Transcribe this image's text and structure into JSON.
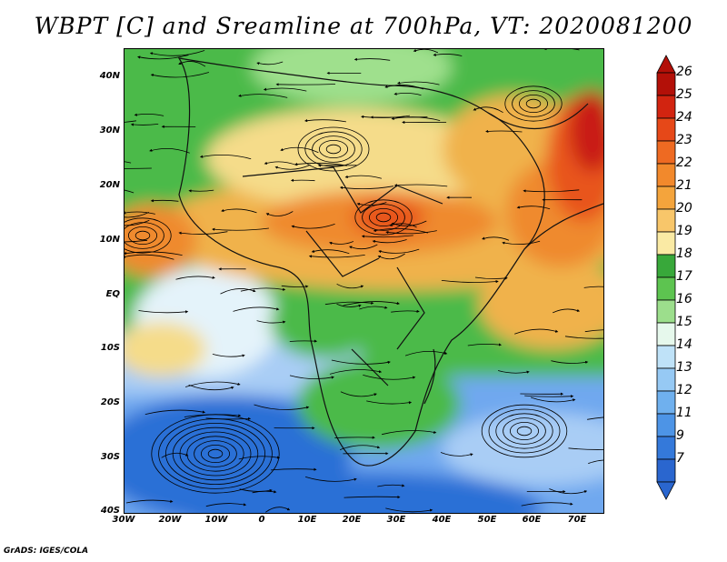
{
  "title": "WBPT [C] and Sreamline at 700hPa, VT: 2020081200",
  "map": {
    "y_ticks": [
      "40N",
      "30N",
      "20N",
      "10N",
      "EQ",
      "10S",
      "20S",
      "30S",
      "40S"
    ],
    "x_ticks": [
      "30W",
      "20W",
      "10W",
      "0",
      "10E",
      "20E",
      "30E",
      "40E",
      "50E",
      "60E",
      "70E"
    ],
    "colors": {
      "cold_deep": "#2c6fd6",
      "cold": "#6fa8ef",
      "cool": "#a9cdf5",
      "neutral": "#e4f3fa",
      "mild_green": "#9fe08d",
      "green": "#4cba48",
      "warm_light": "#f5dc8a",
      "warm": "#f0b24c",
      "hot": "#ef8a2f",
      "hotter": "#e8541e",
      "hottest": "#c91d12"
    }
  },
  "colorbar": {
    "labels": [
      "26",
      "25",
      "24",
      "23",
      "22",
      "21",
      "20",
      "19",
      "18",
      "17",
      "16",
      "15",
      "14",
      "13",
      "12",
      "11",
      "9",
      "7"
    ],
    "colors": [
      "#b31008",
      "#d22410",
      "#e64818",
      "#ee6a22",
      "#f2892c",
      "#f4a43c",
      "#f8c66a",
      "#faeaa4",
      "#38a83a",
      "#5dc450",
      "#9cde8c",
      "#e6f8ec",
      "#bfe2f8",
      "#96c9f4",
      "#6fb0ee",
      "#4d94e6",
      "#3479da",
      "#2a66cf"
    ]
  },
  "footer": "GrADS: IGES/COLA"
}
